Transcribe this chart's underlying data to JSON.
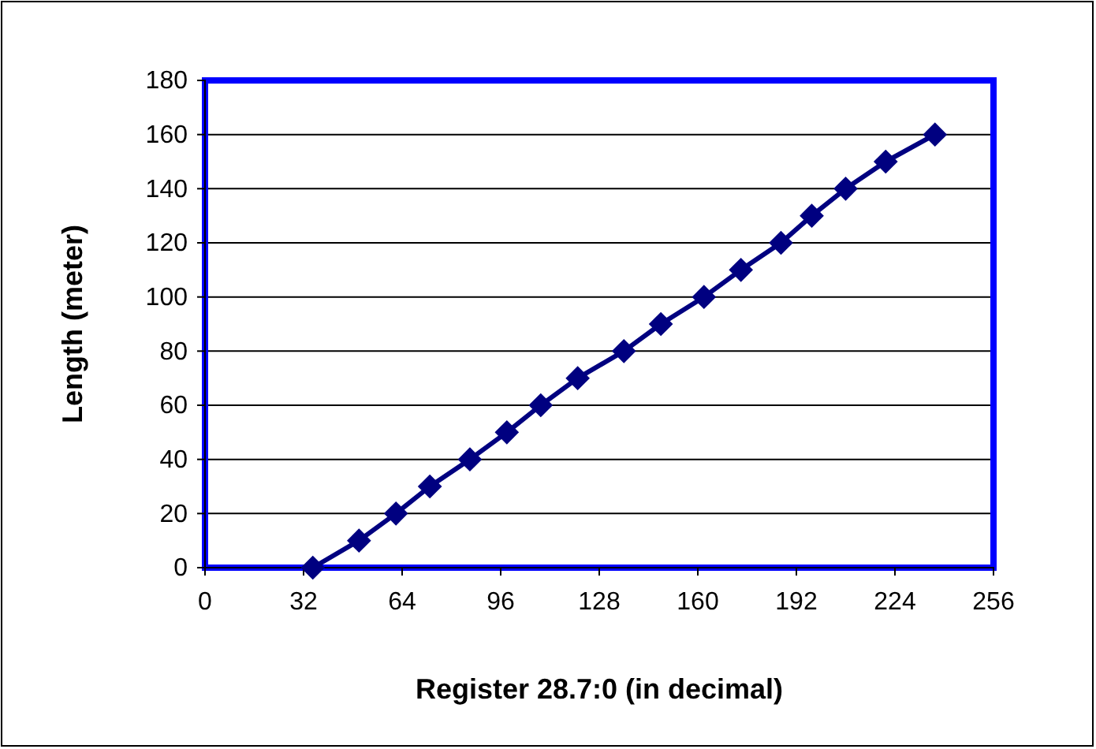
{
  "chart_data": {
    "type": "line",
    "xlabel": "Register 28.7:0 (in decimal)",
    "ylabel": "Length (meter)",
    "x": [
      35,
      50,
      62,
      73,
      86,
      98,
      109,
      121,
      136,
      148,
      162,
      174,
      187,
      197,
      208,
      221,
      237
    ],
    "series": [
      {
        "color": "#000080",
        "values": [
          0,
          10,
          20,
          30,
          40,
          50,
          60,
          70,
          80,
          90,
          100,
          110,
          120,
          130,
          140,
          150,
          160
        ]
      }
    ],
    "xlim": [
      0,
      256
    ],
    "xticks": [
      0,
      32,
      64,
      96,
      128,
      160,
      192,
      224,
      256
    ],
    "ylim": [
      0,
      180
    ],
    "yticks": [
      0,
      20,
      40,
      60,
      80,
      100,
      120,
      140,
      160,
      180
    ],
    "grid": "y",
    "marker": "diamond",
    "line_style": "solid"
  }
}
